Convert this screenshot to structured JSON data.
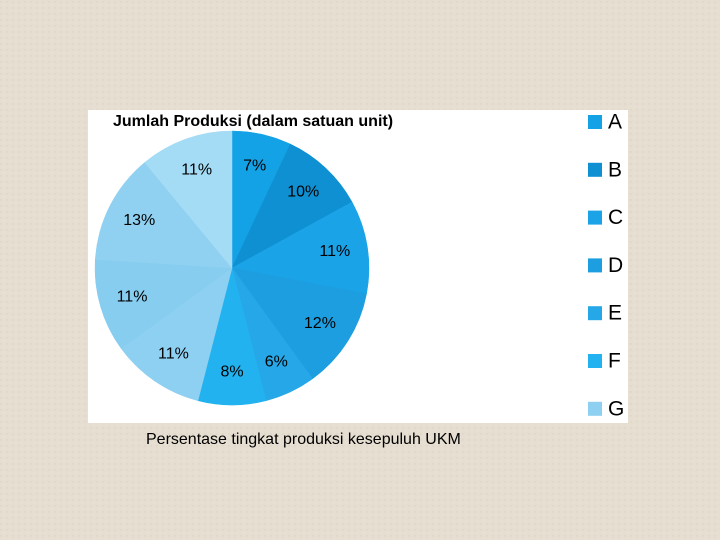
{
  "chart_data": {
    "type": "pie",
    "title": "Jumlah Produksi (dalam satuan unit)",
    "subtitle": "Persentase tingkat produksi kesepuluh UKM",
    "categories": [
      "A",
      "B",
      "C",
      "D",
      "E",
      "F",
      "G",
      null,
      null,
      null
    ],
    "values": [
      7,
      10,
      11,
      12,
      6,
      8,
      11,
      11,
      13,
      11
    ],
    "value_labels": [
      "7%",
      "10%",
      "11%",
      "12%",
      "6%",
      "8%",
      "11%",
      "11%",
      "13%",
      "11%"
    ],
    "colors": [
      "#13a2e6",
      "#0e90d2",
      "#1ba3e8",
      "#1c9ee0",
      "#26a8e8",
      "#22b2ef",
      "#8ed0f1",
      "#87cdef",
      "#90d1f1",
      "#a4dbf5"
    ],
    "legend": "right"
  }
}
